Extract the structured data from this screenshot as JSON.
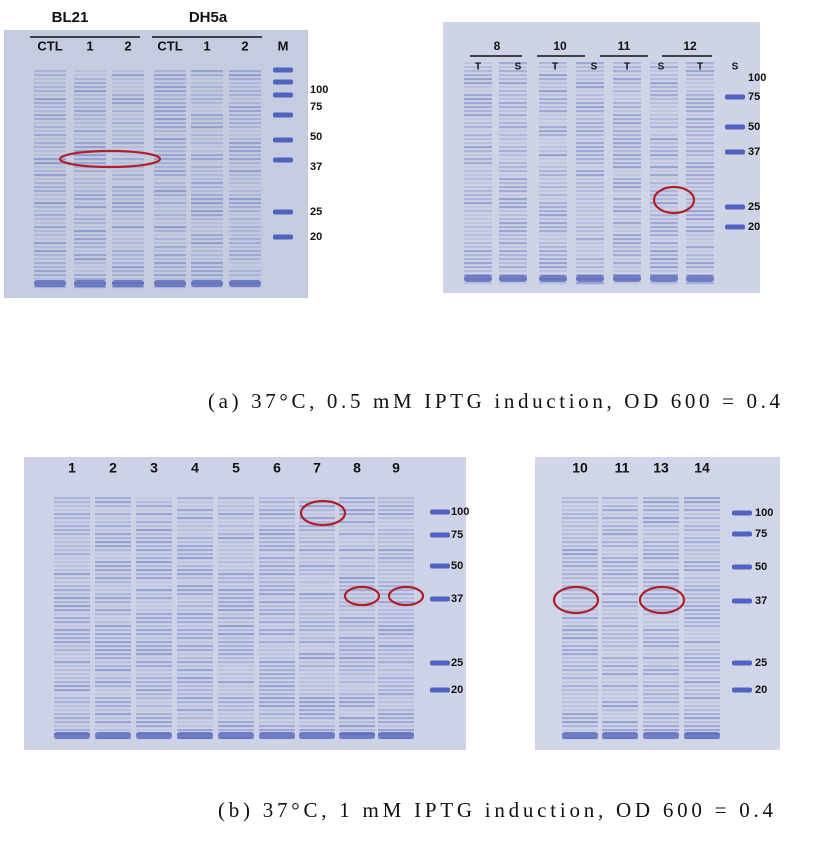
{
  "panel_a": {
    "gels": [
      {
        "groups": [
          "BL21",
          "DH5a"
        ],
        "lanes": [
          "CTL",
          "1",
          "2",
          "CTL",
          "1",
          "2",
          "M"
        ],
        "markers": [
          "100",
          "75",
          "50",
          "37",
          "25",
          "20"
        ]
      },
      {
        "groups": [
          "8",
          "10",
          "11",
          "12"
        ],
        "lanes": [
          "T",
          "S",
          "T",
          "S",
          "T",
          "S",
          "T",
          "S"
        ],
        "markers": [
          "100",
          "75",
          "50",
          "37",
          "25",
          "20"
        ]
      }
    ],
    "caption": "(a) 37°C, 0.5 mM IPTG induction, OD 600 = 0.4"
  },
  "panel_b": {
    "gels": [
      {
        "lanes": [
          "1",
          "2",
          "3",
          "4",
          "5",
          "6",
          "7",
          "8",
          "9"
        ],
        "markers": [
          "100",
          "75",
          "50",
          "37",
          "25",
          "20"
        ]
      },
      {
        "lanes": [
          "10",
          "11",
          "13",
          "14"
        ],
        "markers": [
          "100",
          "75",
          "50",
          "37",
          "25",
          "20"
        ]
      }
    ],
    "caption": "(b) 37°C, 1 mM IPTG induction, OD 600 = 0.4"
  }
}
